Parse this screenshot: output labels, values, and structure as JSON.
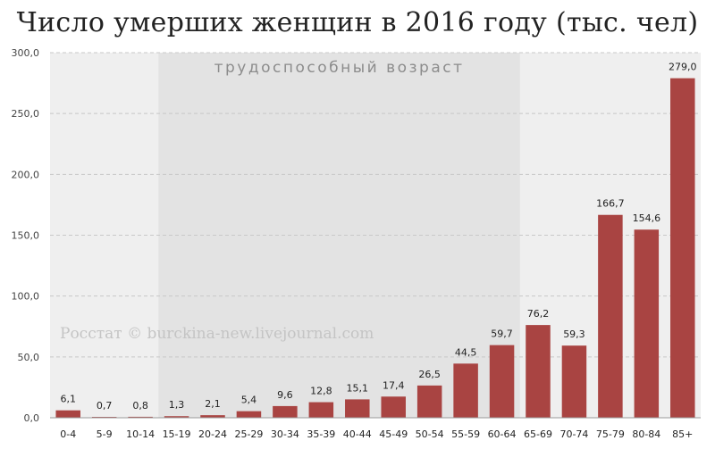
{
  "title": "Число умерших женщин в 2016 году (тыс. чел)",
  "watermark": "Росстат © burckina-new.livejournal.com",
  "chart_data": {
    "type": "bar",
    "title": "Число умерших женщин в 2016 году (тыс. чел)",
    "categories": [
      "0-4",
      "5-9",
      "10-14",
      "15-19",
      "20-24",
      "25-29",
      "30-34",
      "35-39",
      "40-44",
      "45-49",
      "50-54",
      "55-59",
      "60-64",
      "65-69",
      "70-74",
      "75-79",
      "80-84",
      "85+"
    ],
    "values": [
      6.1,
      0.7,
      0.8,
      1.3,
      2.1,
      5.4,
      9.6,
      12.8,
      15.1,
      17.4,
      26.5,
      44.5,
      59.7,
      76.2,
      59.3,
      166.7,
      154.6,
      279.0
    ],
    "value_labels": [
      "6,1",
      "0,7",
      "0,8",
      "1,3",
      "2,1",
      "5,4",
      "9,6",
      "12,8",
      "15,1",
      "17,4",
      "26,5",
      "44,5",
      "59,7",
      "76,2",
      "59,3",
      "166,7",
      "154,6",
      "279,0"
    ],
    "ylim": [
      0,
      300
    ],
    "yticks": [
      0,
      50,
      100,
      150,
      200,
      250,
      300
    ],
    "ytick_labels": [
      "0,0",
      "50,0",
      "100,0",
      "150,0",
      "200,0",
      "250,0",
      "300,0"
    ],
    "grid": true,
    "bar_color": "#a94442",
    "highlight_band": {
      "label": "трудоспособный возраст",
      "from_category": "15-19",
      "to_category": "60-64"
    },
    "xlabel": "",
    "ylabel": ""
  }
}
